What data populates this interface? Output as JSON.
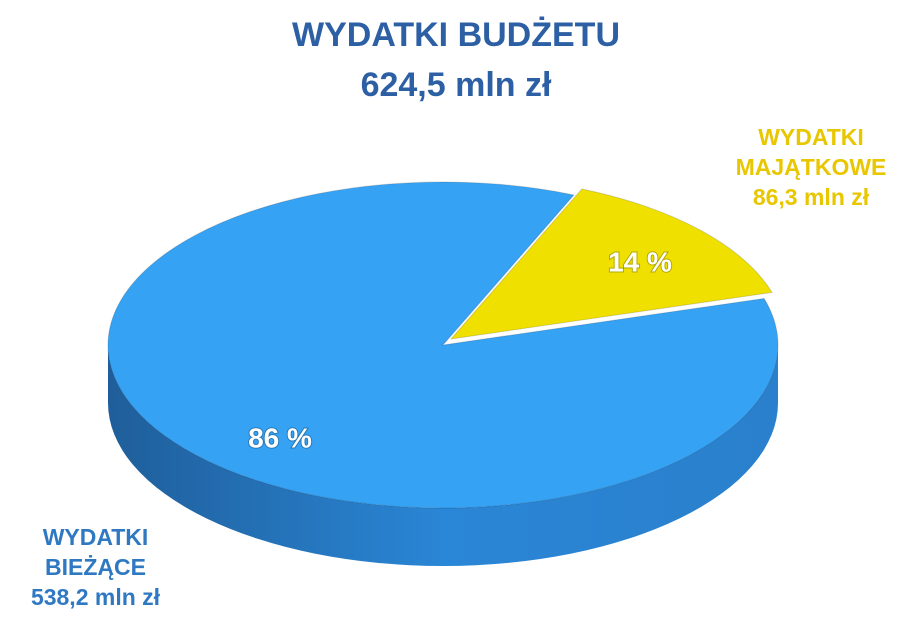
{
  "chart_data": {
    "type": "pie",
    "title": "WYDATKI BUDŻETU",
    "subtitle": "624,5 mln zł",
    "categories": [
      "WYDATKI BIEŻĄCE",
      "WYDATKI MAJĄTKOWE"
    ],
    "amounts": [
      "538,2 mln zł",
      "86,3 mln zł"
    ],
    "values": [
      86,
      14
    ],
    "value_labels": [
      "86 %",
      "14 %"
    ],
    "colors": [
      "#35a2f4",
      "#efe000"
    ],
    "label_colors": [
      "#2f78c2",
      "#e9c700"
    ]
  }
}
